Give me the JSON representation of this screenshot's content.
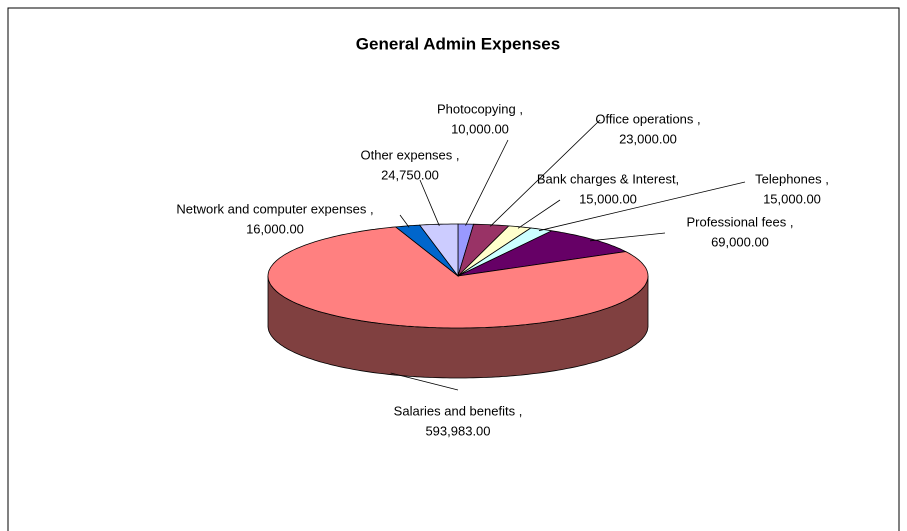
{
  "chart_data": {
    "type": "pie",
    "title": "General Admin Expenses",
    "categories": [
      "Photocopying ,",
      "Office operations ,",
      "Bank charges & Interest,",
      "Telephones ,",
      "Professional fees ,",
      "Salaries and benefits ,",
      "Network and computer expenses ,",
      "Other expenses ,"
    ],
    "values": [
      10000,
      23000,
      15000,
      15000,
      69000,
      593983,
      16000,
      24750
    ],
    "value_labels": [
      "10,000.00",
      "23,000.00",
      "15,000.00",
      "15,000.00",
      "69,000.00",
      "593,983.00",
      "16,000.00",
      "24,750.00"
    ],
    "colors": [
      "#9999ff",
      "#993366",
      "#ffffcc",
      "#ccffff",
      "#660066",
      "#ff8080",
      "#0066cc",
      "#ccccff"
    ]
  }
}
